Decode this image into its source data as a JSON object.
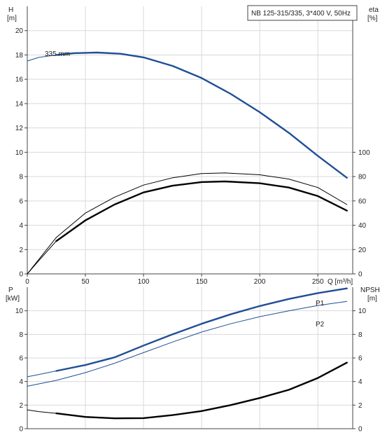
{
  "chart_data": [
    {
      "id": "top",
      "type": "line",
      "title": "NB 125-315/335, 3*400 V, 50Hz",
      "xlabel": "Q [m³/h]",
      "ylabel_left_name": "H",
      "ylabel_left_unit": "[m]",
      "ylabel_right_name": "eta",
      "ylabel_right_unit": "[%]",
      "xlim": [
        0,
        280
      ],
      "ylim_left": [
        0,
        22
      ],
      "ylim_right": [
        0,
        220
      ],
      "x_ticks": [
        "0",
        "50",
        "100",
        "150",
        "200",
        "250"
      ],
      "y_left_ticks": [
        "0",
        "2",
        "4",
        "6",
        "8",
        "10",
        "12",
        "14",
        "16",
        "18",
        "20"
      ],
      "y_right_ticks": [
        "0",
        "20",
        "40",
        "60",
        "80",
        "100"
      ],
      "grid": true,
      "annotation": "335 mm",
      "series": [
        {
          "axis": "left",
          "color": "#1f4e96",
          "style": "thin",
          "x": [
            0,
            10,
            25
          ],
          "y": [
            17.5,
            17.8,
            18.0
          ]
        },
        {
          "axis": "left",
          "color": "#1f4e96",
          "style": "thick",
          "x": [
            25,
            40,
            60,
            80,
            100,
            125,
            150,
            175,
            200,
            225,
            250,
            275
          ],
          "y": [
            18.0,
            18.15,
            18.2,
            18.1,
            17.8,
            17.1,
            16.1,
            14.8,
            13.3,
            11.6,
            9.7,
            7.9
          ]
        },
        {
          "axis": "right",
          "color": "#000000",
          "style": "thin",
          "x": [
            0,
            10,
            25,
            50,
            75,
            100,
            125,
            150,
            170,
            200,
            225,
            250,
            275
          ],
          "y": [
            0,
            12,
            30,
            50,
            63,
            73,
            79,
            82.5,
            83,
            81.5,
            78,
            71,
            57
          ]
        },
        {
          "axis": "right",
          "color": "#000000",
          "style": "thin",
          "x": [
            0,
            10,
            25
          ],
          "y": [
            0,
            11,
            27
          ]
        },
        {
          "axis": "right",
          "color": "#000000",
          "style": "thick",
          "x": [
            25,
            50,
            75,
            100,
            125,
            150,
            170,
            200,
            225,
            250,
            275
          ],
          "y": [
            27,
            44,
            57,
            67,
            72.5,
            75.5,
            76,
            74.5,
            71,
            64,
            52
          ]
        }
      ]
    },
    {
      "id": "bottom",
      "type": "line",
      "xlim": [
        0,
        280
      ],
      "ylabel_left_name": "P",
      "ylabel_left_unit": "[kW]",
      "ylabel_right_name": "NPSH",
      "ylabel_right_unit": "[m]",
      "ylim_left": [
        0,
        12
      ],
      "ylim_right": [
        0,
        12
      ],
      "y_left_ticks": [
        "0",
        "2",
        "4",
        "6",
        "8",
        "10"
      ],
      "y_right_ticks": [
        "0",
        "2",
        "4",
        "6",
        "8",
        "10"
      ],
      "grid": true,
      "series": [
        {
          "name": "P1",
          "axis": "left",
          "color": "#1f4e96",
          "style": "thin",
          "x": [
            0,
            10,
            25
          ],
          "y": [
            4.4,
            4.6,
            4.9
          ]
        },
        {
          "name": "P1",
          "axis": "left",
          "color": "#1f4e96",
          "style": "thick",
          "x": [
            25,
            50,
            75,
            100,
            125,
            150,
            175,
            200,
            225,
            250,
            275
          ],
          "y": [
            4.9,
            5.4,
            6.05,
            7.05,
            8.0,
            8.9,
            9.7,
            10.4,
            11.0,
            11.5,
            11.9
          ]
        },
        {
          "name": "P2",
          "axis": "left",
          "color": "#1f4e96",
          "style": "thin",
          "x": [
            0,
            10,
            25,
            50,
            75,
            100,
            125,
            150,
            175,
            200,
            225,
            250,
            275
          ],
          "y": [
            3.6,
            3.8,
            4.1,
            4.75,
            5.55,
            6.45,
            7.35,
            8.2,
            8.9,
            9.5,
            10.0,
            10.45,
            10.8
          ]
        },
        {
          "name": "NPSH",
          "axis": "right",
          "color": "#000000",
          "style": "thin",
          "x": [
            0,
            10,
            25
          ],
          "y": [
            1.6,
            1.45,
            1.3
          ]
        },
        {
          "name": "NPSH",
          "axis": "right",
          "color": "#000000",
          "style": "thick",
          "x": [
            25,
            50,
            75,
            100,
            125,
            150,
            175,
            200,
            225,
            250,
            275
          ],
          "y": [
            1.3,
            1.0,
            0.88,
            0.9,
            1.15,
            1.5,
            2.0,
            2.6,
            3.3,
            4.3,
            5.6
          ]
        }
      ],
      "labels": [
        "P1",
        "P2"
      ]
    }
  ]
}
